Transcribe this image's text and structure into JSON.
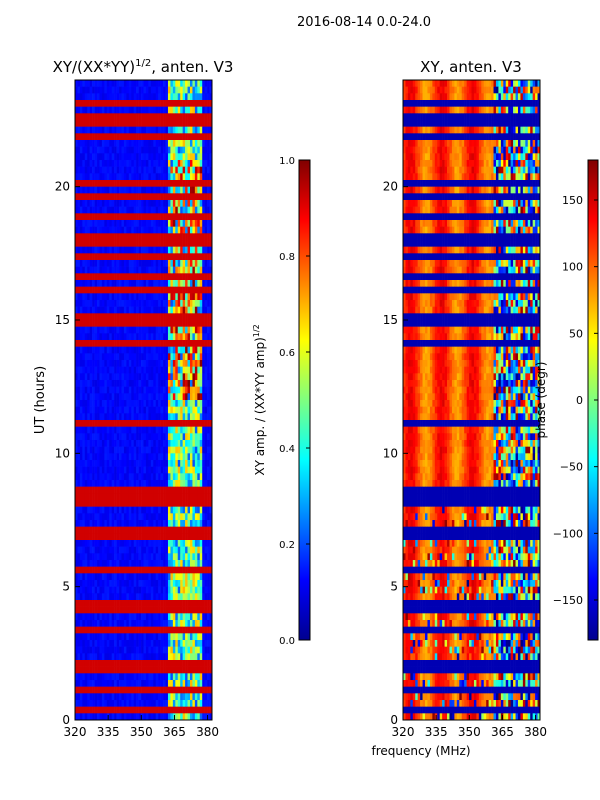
{
  "figure": {
    "suptitle": "2016-08-14 0.0-24.0",
    "shared_xlabel": "frequency (MHz)"
  },
  "chart_data": [
    {
      "type": "heatmap",
      "title": "XY/(XX*YY)",
      "title_superscript": "1/2",
      "title_suffix": ", anten. V3",
      "xlabel": "frequency (MHz)",
      "ylabel": "UT (hours)",
      "xlim": [
        320,
        382
      ],
      "ylim": [
        0,
        24
      ],
      "xticks": [
        320,
        335,
        350,
        365,
        380
      ],
      "yticks": [
        0,
        5,
        10,
        15,
        20
      ],
      "colorbar": {
        "label": "XY amp. / (XX*YY amp)",
        "label_superscript": "1/2",
        "range": [
          0.0,
          1.0
        ],
        "ticks": [
          "0.0",
          "0.2",
          "0.4",
          "0.6",
          "0.8",
          "1.0"
        ],
        "colormap": "jet"
      },
      "features": {
        "background_value": 0.1,
        "high_band_mhz": [
          362,
          378
        ],
        "saturated_rows_hours": [
          0.4,
          1.1,
          2.0,
          3.4,
          4.1,
          4.4,
          5.6,
          7.0,
          8.2,
          8.5,
          11.2,
          14.2,
          15.0,
          16.1,
          16.7,
          17.4,
          17.8,
          18.2,
          18.8,
          19.6,
          20.2,
          21.9,
          22.3,
          22.7,
          23.1
        ]
      }
    },
    {
      "type": "heatmap",
      "title": "XY, anten. V3",
      "xlabel": "frequency (MHz)",
      "ylabel": "",
      "xlim": [
        320,
        382
      ],
      "ylim": [
        0,
        24
      ],
      "xticks": [
        320,
        335,
        350,
        365,
        380
      ],
      "yticks": [
        0,
        5,
        10,
        15,
        20
      ],
      "colorbar": {
        "label": "phase (degr)",
        "range": [
          -180,
          180
        ],
        "ticks": [
          "150",
          "100",
          "50",
          "0",
          "−50",
          "−100",
          "−150"
        ],
        "colormap": "jet"
      },
      "features": {
        "background_phase_deg": 110,
        "stripe_period_mhz": 7,
        "noisy_band_mhz": [
          361,
          382
        ],
        "dark_rows_hours": [
          0.4,
          1.1,
          2.0,
          3.4,
          4.1,
          4.4,
          5.6,
          7.0,
          8.2,
          8.5,
          11.2,
          14.2,
          15.0,
          16.1,
          16.7,
          17.4,
          17.8,
          18.2,
          18.8,
          19.6,
          20.2,
          21.9,
          22.3,
          22.7,
          23.1
        ]
      }
    }
  ]
}
